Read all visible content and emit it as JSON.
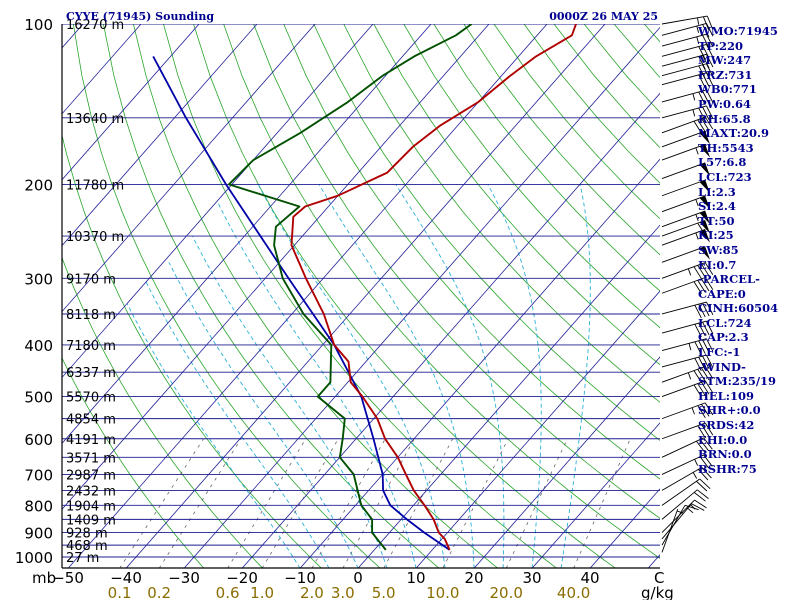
{
  "chart_data": {
    "type": "skew-t sounding",
    "title_left": "CYYE (71945) Sounding",
    "title_right": "0000Z 26 MAY 25",
    "y_axis_unit": "mb",
    "x_axis_unit": "C",
    "mixing_ratio_unit": "g/kg",
    "pressure_ticks": [
      100,
      200,
      300,
      400,
      500,
      600,
      700,
      800,
      900,
      1000
    ],
    "height_labels": [
      {
        "p": 100,
        "text": "16270 m"
      },
      {
        "p": 150,
        "text": "13640 m"
      },
      {
        "p": 200,
        "text": "11780 m"
      },
      {
        "p": 250,
        "text": "10370 m"
      },
      {
        "p": 300,
        "text": "9170 m"
      },
      {
        "p": 350,
        "text": "8118 m"
      },
      {
        "p": 400,
        "text": "7180 m"
      },
      {
        "p": 450,
        "text": "6337 m"
      },
      {
        "p": 500,
        "text": "5570 m"
      },
      {
        "p": 550,
        "text": "4854 m"
      },
      {
        "p": 600,
        "text": "4191 m"
      },
      {
        "p": 650,
        "text": "3571 m"
      },
      {
        "p": 700,
        "text": "2987 m"
      },
      {
        "p": 750,
        "text": "2432 m"
      },
      {
        "p": 800,
        "text": "1904 m"
      },
      {
        "p": 850,
        "text": "1409 m"
      },
      {
        "p": 900,
        "text": "928 m"
      },
      {
        "p": 950,
        "text": "468 m"
      },
      {
        "p": 1000,
        "text": "27 m"
      }
    ],
    "temperature_ticks": [
      -50,
      -40,
      -30,
      -20,
      -10,
      0,
      10,
      20,
      30,
      40
    ],
    "mixing_ratio_ticks": [
      0.1,
      0.2,
      0.6,
      1.0,
      2.0,
      3.0,
      5.0,
      10.0,
      20.0,
      40.0
    ],
    "temperature_profile": [
      {
        "p": 970,
        "t": 13.0
      },
      {
        "p": 925,
        "t": 10.5
      },
      {
        "p": 900,
        "t": 8.5
      },
      {
        "p": 850,
        "t": 5.6
      },
      {
        "p": 800,
        "t": 1.9
      },
      {
        "p": 750,
        "t": -2.2
      },
      {
        "p": 700,
        "t": -6.0
      },
      {
        "p": 650,
        "t": -10.0
      },
      {
        "p": 600,
        "t": -15.0
      },
      {
        "p": 550,
        "t": -19.4
      },
      {
        "p": 500,
        "t": -25.3
      },
      {
        "p": 470,
        "t": -29.5
      },
      {
        "p": 430,
        "t": -33.0
      },
      {
        "p": 400,
        "t": -38.0
      },
      {
        "p": 350,
        "t": -44.5
      },
      {
        "p": 300,
        "t": -53.0
      },
      {
        "p": 260,
        "t": -60.5
      },
      {
        "p": 230,
        "t": -64.5
      },
      {
        "p": 220,
        "t": -64.0
      },
      {
        "p": 210,
        "t": -60.0
      },
      {
        "p": 190,
        "t": -55.0
      },
      {
        "p": 170,
        "t": -54.5
      },
      {
        "p": 155,
        "t": -53.0
      },
      {
        "p": 140,
        "t": -50.0
      },
      {
        "p": 125,
        "t": -48.5
      },
      {
        "p": 115,
        "t": -47.0
      },
      {
        "p": 105,
        "t": -44.0
      },
      {
        "p": 100,
        "t": -45.0
      }
    ],
    "dewpoint_profile": [
      {
        "p": 970,
        "t": 2.0
      },
      {
        "p": 900,
        "t": -3.0
      },
      {
        "p": 850,
        "t": -5.0
      },
      {
        "p": 800,
        "t": -9.0
      },
      {
        "p": 700,
        "t": -15.0
      },
      {
        "p": 650,
        "t": -20.0
      },
      {
        "p": 600,
        "t": -22.3
      },
      {
        "p": 550,
        "t": -25.0
      },
      {
        "p": 500,
        "t": -33.0
      },
      {
        "p": 470,
        "t": -33.0
      },
      {
        "p": 400,
        "t": -38.5
      },
      {
        "p": 350,
        "t": -48.0
      },
      {
        "p": 300,
        "t": -57.0
      },
      {
        "p": 260,
        "t": -63.5
      },
      {
        "p": 240,
        "t": -66.0
      },
      {
        "p": 220,
        "t": -65.0
      },
      {
        "p": 200,
        "t": -80.5
      },
      {
        "p": 180,
        "t": -80.0
      },
      {
        "p": 160,
        "t": -76.0
      },
      {
        "p": 140,
        "t": -72.5
      },
      {
        "p": 125,
        "t": -70.5
      },
      {
        "p": 115,
        "t": -68.0
      },
      {
        "p": 105,
        "t": -64.0
      },
      {
        "p": 100,
        "t": -63.0
      }
    ],
    "parcel_profile": [
      {
        "p": 970,
        "t": 13.0
      },
      {
        "p": 900,
        "t": 6.0
      },
      {
        "p": 850,
        "t": 1.0
      },
      {
        "p": 800,
        "t": -4.0
      },
      {
        "p": 750,
        "t": -7.5
      },
      {
        "p": 700,
        "t": -10.0
      },
      {
        "p": 600,
        "t": -17.0
      },
      {
        "p": 500,
        "t": -25.5
      },
      {
        "p": 400,
        "t": -38.0
      },
      {
        "p": 300,
        "t": -56.0
      },
      {
        "p": 200,
        "t": -81.0
      },
      {
        "p": 150,
        "t": -98.0
      },
      {
        "p": 115,
        "t": -113.0
      }
    ],
    "wind_barbs": [
      {
        "p": 980,
        "dir": 200,
        "kt": 5
      },
      {
        "p": 950,
        "dir": 210,
        "kt": 10
      },
      {
        "p": 925,
        "dir": 220,
        "kt": 15
      },
      {
        "p": 900,
        "dir": 225,
        "kt": 15
      },
      {
        "p": 850,
        "dir": 230,
        "kt": 20
      },
      {
        "p": 800,
        "dir": 235,
        "kt": 20
      },
      {
        "p": 750,
        "dir": 240,
        "kt": 25
      },
      {
        "p": 700,
        "dir": 245,
        "kt": 25
      },
      {
        "p": 650,
        "dir": 245,
        "kt": 30
      },
      {
        "p": 600,
        "dir": 250,
        "kt": 30
      },
      {
        "p": 550,
        "dir": 250,
        "kt": 35
      },
      {
        "p": 500,
        "dir": 250,
        "kt": 40
      },
      {
        "p": 470,
        "dir": 250,
        "kt": 45
      },
      {
        "p": 440,
        "dir": 255,
        "kt": 40
      },
      {
        "p": 410,
        "dir": 255,
        "kt": 45
      },
      {
        "p": 380,
        "dir": 255,
        "kt": 40
      },
      {
        "p": 350,
        "dir": 255,
        "kt": 40
      },
      {
        "p": 320,
        "dir": 250,
        "kt": 40
      },
      {
        "p": 300,
        "dir": 250,
        "kt": 45
      },
      {
        "p": 280,
        "dir": 250,
        "kt": 50
      },
      {
        "p": 260,
        "dir": 250,
        "kt": 55
      },
      {
        "p": 250,
        "dir": 250,
        "kt": 60
      },
      {
        "p": 240,
        "dir": 250,
        "kt": 55
      },
      {
        "p": 225,
        "dir": 250,
        "kt": 55
      },
      {
        "p": 210,
        "dir": 250,
        "kt": 50
      },
      {
        "p": 195,
        "dir": 250,
        "kt": 50
      },
      {
        "p": 180,
        "dir": 250,
        "kt": 55
      },
      {
        "p": 170,
        "dir": 250,
        "kt": 50
      },
      {
        "p": 160,
        "dir": 250,
        "kt": 40
      },
      {
        "p": 150,
        "dir": 255,
        "kt": 35
      },
      {
        "p": 140,
        "dir": 255,
        "kt": 35
      },
      {
        "p": 130,
        "dir": 255,
        "kt": 30
      },
      {
        "p": 125,
        "dir": 255,
        "kt": 30
      },
      {
        "p": 120,
        "dir": 255,
        "kt": 30
      },
      {
        "p": 115,
        "dir": 255,
        "kt": 30
      },
      {
        "p": 110,
        "dir": 255,
        "kt": 25
      },
      {
        "p": 105,
        "dir": 255,
        "kt": 25
      },
      {
        "p": 100,
        "dir": 260,
        "kt": 25
      }
    ]
  },
  "indices": [
    "WMO:71945",
    "TP:220",
    "MW:247",
    "FRZ:731",
    "WB0:771",
    "PW:0.64",
    "RH:65.8",
    "MAXT:20.9",
    "TH:5543",
    "L57:6.8",
    "LCL:723",
    "LI:2.3",
    "SI:2.4",
    "TT:50",
    "KI:25",
    "SW:85",
    "EI:0.7",
    "-PARCEL-",
    "CAPE:0",
    "CINH:60504",
    "LCL:724",
    "CAP:2.3",
    "LFC:-1",
    "-WIND-",
    "STM:235/19",
    "HEL:109",
    "SHR+:0.0",
    "SRDS:42",
    "EHI:0.0",
    "BRN:0.0",
    "BSHR:75"
  ],
  "colors": {
    "isobar": "#1c1c90",
    "isotherm": "#20209a",
    "dry_adiabat": "#2aa52a",
    "moist_adiabat": "#2ab0d8",
    "mixing_ratio": "#666666",
    "temperature": "#b00000",
    "dewpoint": "#005000",
    "parcel": "#0000a8",
    "barb": "#000000",
    "title": "#000090",
    "mixing_ratio_label": "#8a6d00"
  }
}
